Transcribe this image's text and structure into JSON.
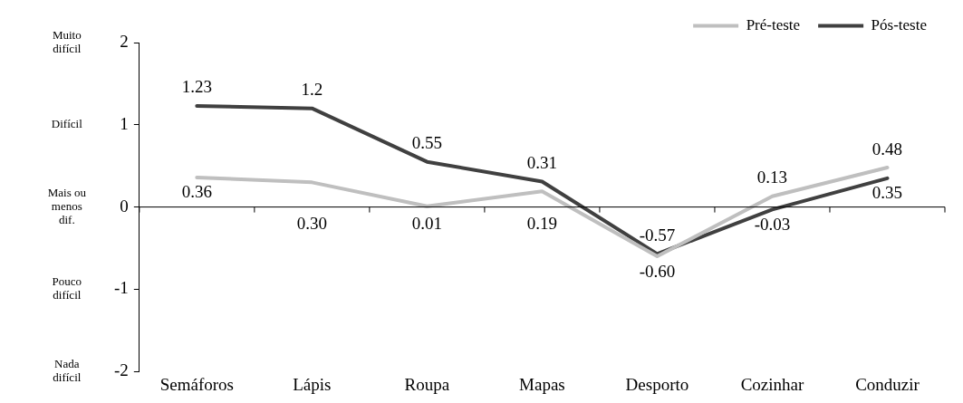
{
  "chart_data": {
    "type": "line",
    "categories": [
      "Semáforos",
      "Lápis",
      "Roupa",
      "Mapas",
      "Desporto",
      "Cozinhar",
      "Conduzir"
    ],
    "series": [
      {
        "name": "Pré-teste",
        "color": "#bfbfbf",
        "values": [
          0.36,
          0.3,
          0.01,
          0.19,
          -0.6,
          0.13,
          0.48
        ],
        "value_labels": [
          "0.36",
          "0.30",
          "0.01",
          "0.19",
          "-0.60",
          "0.13",
          "0.48"
        ]
      },
      {
        "name": "Pós-teste",
        "color": "#404040",
        "values": [
          1.23,
          1.2,
          0.55,
          0.31,
          -0.57,
          -0.03,
          0.35
        ],
        "value_labels": [
          "1.23",
          "1.2",
          "0.55",
          "0.31",
          "-0.57",
          "-0.03",
          "0.35"
        ]
      }
    ],
    "ylim": [
      -2,
      2
    ],
    "yticks": [
      -2,
      -1,
      0,
      1,
      2
    ],
    "annotations": [
      "Muito difícil",
      "Difícil",
      "Mais ou menos dif.",
      "Pouco difícil",
      "Nada difícil"
    ],
    "ref_lines": [
      {
        "axis": "y",
        "value": 0,
        "color": "#000000"
      }
    ],
    "legend": "top right",
    "grid": false,
    "marker": "none",
    "line_style": "solid"
  }
}
